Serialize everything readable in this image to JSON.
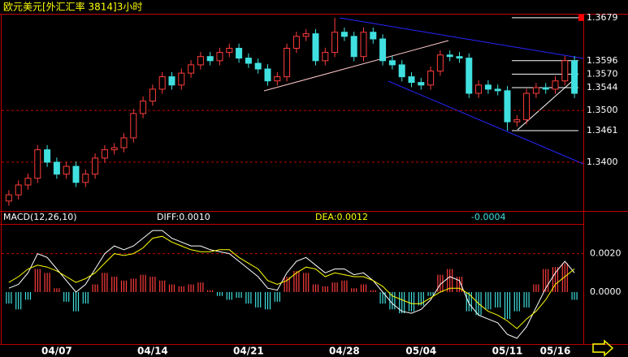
{
  "window_title": "欧元美元[外汇汇率 3814]3小时",
  "chart_data": [
    {
      "type": "candlestick",
      "up_color": "#ff3c3c",
      "down_color": "#40e0e0",
      "grid": true,
      "level_color": "#ffffff",
      "ylim": [
        1.3309,
        1.3685
      ],
      "yticks": [
        {
          "value": 1.34,
          "label": "1.3400"
        },
        {
          "value": 1.35,
          "label": "1.3500"
        }
      ],
      "levels": [
        1.3679,
        1.3596,
        {
          "value": 1.357,
          "label": "1.3570"
        },
        1.3544,
        1.3461
      ],
      "open": [
        1.3325,
        1.3337,
        1.3356,
        1.3369,
        1.3424,
        1.34,
        1.3377,
        1.3392,
        1.3361,
        1.3377,
        1.3408,
        1.3424,
        1.3428,
        1.3447,
        1.3494,
        1.3518,
        1.3541,
        1.3565,
        1.3549,
        1.3572,
        1.3588,
        1.3604,
        1.3596,
        1.3612,
        1.362,
        1.3601,
        1.3591,
        1.358,
        1.3557,
        1.3565,
        1.362,
        1.3643,
        1.3648,
        1.3596,
        1.3612,
        1.3651,
        1.3643,
        1.3604,
        1.3651,
        1.3638,
        1.3596,
        1.3588,
        1.3565,
        1.3554,
        1.3549,
        1.3576,
        1.3607,
        1.3604,
        1.3601,
        1.3533,
        1.3549,
        1.3541,
        1.3538,
        1.3478,
        1.3482,
        1.3533,
        1.3544,
        1.3541,
        1.3557,
        1.3596
      ],
      "high": [
        1.3346,
        1.3365,
        1.3378,
        1.3433,
        1.3433,
        1.3409,
        1.3401,
        1.3401,
        1.3386,
        1.3417,
        1.3433,
        1.3437,
        1.3456,
        1.3503,
        1.3527,
        1.355,
        1.3574,
        1.3574,
        1.3581,
        1.3597,
        1.3613,
        1.3613,
        1.3621,
        1.3629,
        1.3629,
        1.361,
        1.36,
        1.3589,
        1.3574,
        1.3629,
        1.3652,
        1.3657,
        1.3657,
        1.3621,
        1.3679,
        1.366,
        1.3652,
        1.366,
        1.366,
        1.3647,
        1.3605,
        1.3597,
        1.3574,
        1.3563,
        1.3585,
        1.3616,
        1.3616,
        1.3613,
        1.361,
        1.3558,
        1.3558,
        1.355,
        1.3547,
        1.3491,
        1.3542,
        1.3553,
        1.3553,
        1.3566,
        1.3605,
        1.3605
      ],
      "low": [
        1.3316,
        1.3328,
        1.3347,
        1.336,
        1.3391,
        1.3368,
        1.3368,
        1.3352,
        1.3352,
        1.3368,
        1.3399,
        1.3415,
        1.3419,
        1.3438,
        1.3485,
        1.3509,
        1.3532,
        1.354,
        1.354,
        1.3563,
        1.3579,
        1.3587,
        1.3587,
        1.3603,
        1.3592,
        1.3582,
        1.3571,
        1.3548,
        1.3548,
        1.3556,
        1.3611,
        1.3634,
        1.3587,
        1.3587,
        1.3603,
        1.3634,
        1.3595,
        1.3595,
        1.3629,
        1.3587,
        1.3579,
        1.3556,
        1.3545,
        1.354,
        1.354,
        1.3567,
        1.3595,
        1.3592,
        1.3524,
        1.3524,
        1.3532,
        1.3529,
        1.3461,
        1.3469,
        1.3473,
        1.3524,
        1.3532,
        1.3532,
        1.3548,
        1.3524
      ],
      "close": [
        1.3337,
        1.3356,
        1.3369,
        1.3424,
        1.34,
        1.3377,
        1.3392,
        1.3361,
        1.3377,
        1.3408,
        1.3424,
        1.3428,
        1.3447,
        1.3494,
        1.3518,
        1.3541,
        1.3565,
        1.3549,
        1.3572,
        1.3588,
        1.3604,
        1.3596,
        1.3612,
        1.362,
        1.3601,
        1.3591,
        1.358,
        1.3557,
        1.3565,
        1.362,
        1.3643,
        1.3648,
        1.3596,
        1.3612,
        1.3651,
        1.3643,
        1.3604,
        1.3651,
        1.3638,
        1.3596,
        1.3588,
        1.3565,
        1.3554,
        1.3549,
        1.3576,
        1.3607,
        1.3604,
        1.3601,
        1.3533,
        1.3549,
        1.3541,
        1.3538,
        1.3478,
        1.3482,
        1.3533,
        1.3544,
        1.3541,
        1.3557,
        1.3596,
        1.3533
      ]
    },
    {
      "type": "macd",
      "title": "MACD(12,26,10)",
      "diff_label": "DIFF:0.0010",
      "dea_label": "DEA:0.0012",
      "grid": true,
      "ylim": [
        -0.0027,
        0.0035
      ],
      "yticks": [
        {
          "value": 0,
          "label": "0.0000"
        },
        {
          "value": 0.002,
          "label": "0.0020"
        }
      ],
      "categories": [
        null,
        null,
        null,
        null,
        null,
        "04/07",
        null,
        null,
        null,
        null,
        null,
        null,
        null,
        null,
        null,
        "04/14",
        null,
        null,
        null,
        null,
        null,
        null,
        null,
        null,
        null,
        "04/21",
        null,
        null,
        null,
        null,
        null,
        null,
        null,
        null,
        null,
        "04/28",
        null,
        null,
        null,
        null,
        null,
        null,
        null,
        "05/04",
        null,
        null,
        null,
        null,
        null,
        null,
        null,
        null,
        "05/11",
        null,
        null,
        null,
        null,
        "05/16",
        null,
        null
      ],
      "histogram": {
        "up_color": "#ff3c3c",
        "down_color": "#40e0e0",
        "values": [
          -0.0006,
          -0.0009,
          -0.0004,
          0.0012,
          0.001,
          0.0002,
          -0.0005,
          -0.001,
          -0.0006,
          0.0004,
          0.001,
          0.0008,
          0.0006,
          0.0007,
          0.0009,
          0.0008,
          0.0006,
          0.0004,
          0.0003,
          0.0004,
          0.0005,
          0.0001,
          -0.0002,
          -0.0004,
          -0.0003,
          -0.0006,
          -0.0008,
          -0.0009,
          -0.0005,
          0.0008,
          0.0011,
          0.001,
          0.0004,
          0.0003,
          0.0005,
          0.0006,
          0.0002,
          0.0004,
          0.0001,
          -0.0006,
          -0.0009,
          -0.0011,
          -0.001,
          -0.0007,
          -0.0002,
          0.0009,
          0.0012,
          0.0008,
          -0.001,
          -0.0012,
          -0.0009,
          -0.0008,
          -0.0014,
          -0.001,
          -0.0008,
          0.0004,
          0.0012,
          0.0013,
          0.0015,
          -0.0004
        ]
      },
      "diff": {
        "color": "#ffffff",
        "values": [
          0.0002,
          0.0004,
          0.001,
          0.002,
          0.0018,
          0.0012,
          0.0006,
          0.0,
          0.0004,
          0.0012,
          0.002,
          0.0024,
          0.0022,
          0.0024,
          0.0028,
          0.0032,
          0.0032,
          0.0028,
          0.0026,
          0.0024,
          0.0024,
          0.0022,
          0.0021,
          0.002,
          0.0016,
          0.0012,
          0.0008,
          0.0002,
          0.0001,
          0.001,
          0.0016,
          0.0018,
          0.0014,
          0.001,
          0.0012,
          0.0012,
          0.0009,
          0.001,
          0.0006,
          0.0,
          -0.0006,
          -0.001,
          -0.0011,
          -0.0009,
          -0.0004,
          0.0004,
          0.0008,
          0.0006,
          -0.0006,
          -0.0012,
          -0.0014,
          -0.0016,
          -0.0022,
          -0.0024,
          -0.0018,
          -0.0008,
          0.0002,
          0.001,
          0.0016,
          0.001
        ]
      },
      "dea": {
        "color": "#ffff00",
        "values": [
          0.0005,
          0.0008,
          0.0012,
          0.0014,
          0.0013,
          0.0011,
          0.0008,
          0.0005,
          0.0007,
          0.001,
          0.0015,
          0.002,
          0.0019,
          0.002,
          0.0023,
          0.0028,
          0.0029,
          0.0026,
          0.0024,
          0.0022,
          0.0021,
          0.0021,
          0.0022,
          0.0022,
          0.0018,
          0.0015,
          0.0012,
          0.0006,
          0.0004,
          0.0006,
          0.001,
          0.0013,
          0.0012,
          0.0008,
          0.001,
          0.0009,
          0.0008,
          0.0008,
          0.0006,
          0.0003,
          -0.0002,
          -0.0004,
          -0.0006,
          -0.0006,
          -0.0003,
          0.0,
          0.0002,
          0.0002,
          -0.0001,
          -0.0006,
          -0.001,
          -0.0012,
          -0.0015,
          -0.0019,
          -0.0014,
          -0.001,
          -0.0004,
          0.0004,
          0.0008,
          0.0012
        ]
      }
    }
  ]
}
